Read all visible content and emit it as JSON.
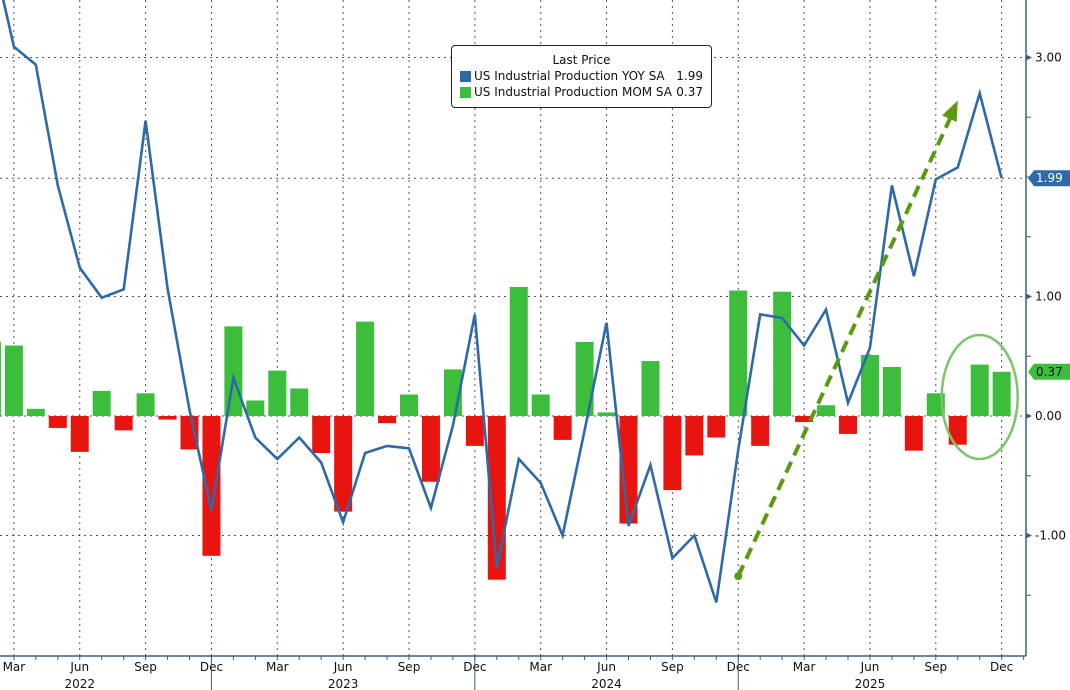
{
  "chart_data": {
    "type": "bar+line",
    "legend_title": "Last Price",
    "legend_placement": "top-center",
    "series": [
      {
        "name": "US Industrial Production YOY SA",
        "last": "1.99",
        "type": "line",
        "color": "#2e6aa8",
        "values": [
          3.9,
          3.09,
          2.94,
          1.93,
          1.24,
          0.99,
          1.06,
          2.47,
          1.07,
          0.05,
          -0.79,
          0.32,
          -0.18,
          -0.36,
          -0.18,
          -0.39,
          -0.89,
          -0.31,
          -0.25,
          -0.27,
          -0.77,
          -0.08,
          0.85,
          -1.27,
          -0.36,
          -0.56,
          -1.0,
          -0.12,
          0.78,
          -0.92,
          -0.41,
          -1.19,
          -1.0,
          -1.56,
          -0.28,
          0.85,
          0.82,
          0.59,
          0.89,
          0.11,
          0.57,
          1.93,
          1.17,
          1.98,
          2.08,
          2.7,
          1.99
        ]
      },
      {
        "name": "US Industrial Production MOM SA",
        "last": "0.37",
        "type": "bar",
        "color": "#3cbe3c",
        "negative_color": "#e8140f",
        "values": [
          0.62,
          0.59,
          0.06,
          -0.1,
          -0.3,
          0.21,
          -0.12,
          0.19,
          -0.03,
          -0.28,
          -1.17,
          0.75,
          0.13,
          0.38,
          0.23,
          -0.31,
          -0.8,
          0.79,
          -0.06,
          0.18,
          -0.55,
          0.39,
          -0.25,
          -1.37,
          1.08,
          0.18,
          -0.2,
          0.62,
          0.03,
          -0.9,
          0.46,
          -0.62,
          -0.33,
          -0.18,
          1.05,
          -0.25,
          1.04,
          -0.05,
          0.09,
          -0.15,
          0.51,
          0.41,
          -0.29,
          0.19,
          -0.24,
          0.43,
          0.37
        ]
      }
    ],
    "x_start": "2022-02",
    "x_end": "2025-12",
    "x_tick_labels": [
      {
        "label": "Mar",
        "month": "2022-03"
      },
      {
        "label": "Jun",
        "month": "2022-06"
      },
      {
        "label": "Sep",
        "month": "2022-09"
      },
      {
        "label": "Dec",
        "month": "2022-12"
      },
      {
        "label": "Mar",
        "month": "2023-03"
      },
      {
        "label": "Jun",
        "month": "2023-06"
      },
      {
        "label": "Sep",
        "month": "2023-09"
      },
      {
        "label": "Dec",
        "month": "2023-12"
      },
      {
        "label": "Mar",
        "month": "2024-03"
      },
      {
        "label": "Jun",
        "month": "2024-06"
      },
      {
        "label": "Sep",
        "month": "2024-09"
      },
      {
        "label": "Dec",
        "month": "2024-12"
      },
      {
        "label": "Mar",
        "month": "2025-03"
      },
      {
        "label": "Jun",
        "month": "2025-06"
      },
      {
        "label": "Sep",
        "month": "2025-09"
      },
      {
        "label": "Dec",
        "month": "2025-12"
      }
    ],
    "year_labels": [
      {
        "label": "2022",
        "month": "2022-06"
      },
      {
        "label": "2023",
        "month": "2023-06"
      },
      {
        "label": "2024",
        "month": "2024-06"
      },
      {
        "label": "2025",
        "month": "2025-06"
      }
    ],
    "y_ticks": [
      {
        "value": 3,
        "label": "3.00"
      },
      {
        "value": 1,
        "label": "1.00"
      },
      {
        "value": 0,
        "label": "0.00"
      },
      {
        "value": -1,
        "label": "-1.00"
      }
    ],
    "ylim": [
      -2.0,
      3.48
    ],
    "grid": true,
    "annotations": [
      {
        "type": "dashed-arrow",
        "color": "#5a9a10",
        "from_month": "2024-12",
        "from_value": -1.34,
        "to_month": "2025-10",
        "to_value": 2.64
      },
      {
        "type": "ellipse",
        "color": "#7dc46a",
        "around_months": [
          "2025-10",
          "2025-12"
        ]
      }
    ]
  }
}
